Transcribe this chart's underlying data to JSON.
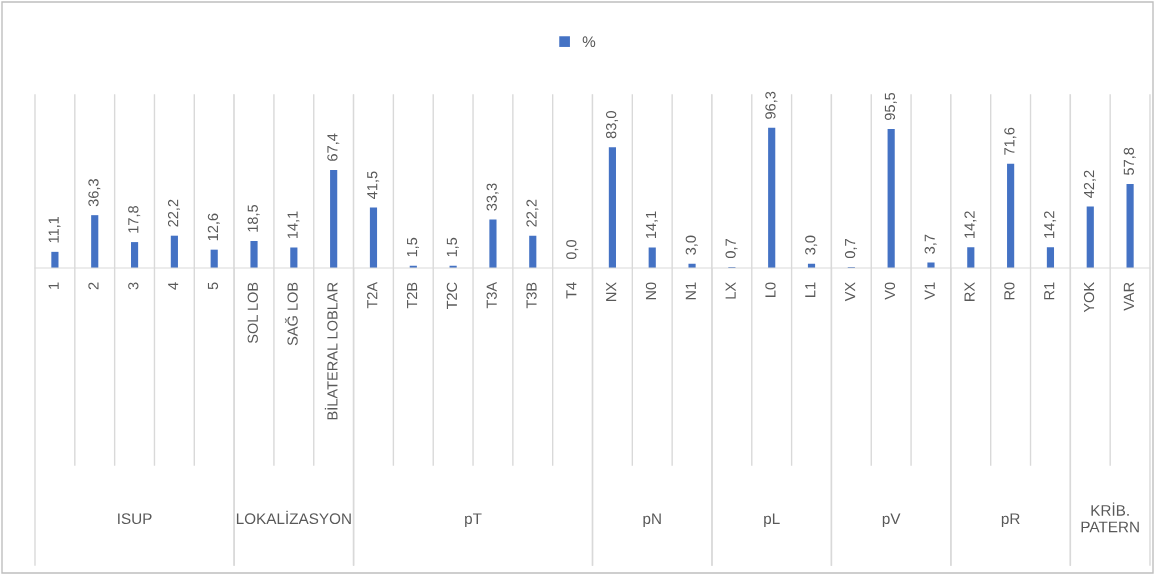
{
  "chart_data": [
    {
      "type": "bar",
      "xlabel": "ISUP",
      "categories": [
        "1",
        "2",
        "3",
        "4",
        "5"
      ],
      "legend": "top",
      "series": [
        {
          "name": "%",
          "color": "#4472c4",
          "values": [
            11.1,
            36.3,
            17.8,
            22.2,
            12.6
          ],
          "value_labels": [
            "11,1",
            "36,3",
            "17,8",
            "22,2",
            "12,6"
          ]
        }
      ]
    },
    {
      "type": "bar",
      "xlabel": "LOKALİZASYON",
      "categories": [
        "SOL LOB",
        "SAĞ LOB",
        "BİLATERAL LOBLAR"
      ],
      "series": [
        {
          "color": "#4472c4",
          "values": [
            18.5,
            14.1,
            67.4
          ],
          "value_labels": [
            "18,5",
            "14,1",
            "67,4"
          ]
        }
      ]
    },
    {
      "type": "bar",
      "xlabel": "pT",
      "categories": [
        "T2A",
        "T2B",
        "T2C",
        "T3A",
        "T3B",
        "T4"
      ],
      "series": [
        {
          "color": "#4472c4",
          "values": [
            41.5,
            1.5,
            1.5,
            33.3,
            22.2,
            0.0
          ],
          "value_labels": [
            "41,5",
            "1,5",
            "1,5",
            "33,3",
            "22,2",
            "0,0"
          ]
        }
      ]
    },
    {
      "type": "bar",
      "xlabel": "pN",
      "categories": [
        "NX",
        "N0",
        "N1"
      ],
      "series": [
        {
          "color": "#4472c4",
          "values": [
            83.0,
            14.1,
            3.0
          ],
          "value_labels": [
            "83,0",
            "14,1",
            "3,0"
          ]
        }
      ]
    },
    {
      "type": "bar",
      "xlabel": "pL",
      "categories": [
        "LX",
        "L0",
        "L1"
      ],
      "series": [
        {
          "color": "#4472c4",
          "values": [
            0.7,
            96.3,
            3.0
          ],
          "value_labels": [
            "0,7",
            "96,3",
            "3,0"
          ]
        }
      ]
    },
    {
      "type": "bar",
      "xlabel": "pV",
      "categories": [
        "VX",
        "V0",
        "V1"
      ],
      "series": [
        {
          "color": "#4472c4",
          "values": [
            0.7,
            95.5,
            3.7
          ],
          "value_labels": [
            "0,7",
            "95,5",
            "3,7"
          ]
        }
      ]
    },
    {
      "type": "bar",
      "xlabel": "pR",
      "categories": [
        "RX",
        "R0",
        "R1"
      ],
      "series": [
        {
          "color": "#4472c4",
          "values": [
            14.2,
            71.6,
            14.2
          ],
          "value_labels": [
            "14,2",
            "71,6",
            "14,2"
          ]
        }
      ]
    },
    {
      "type": "bar",
      "xlabel": "KRİB. PATERN",
      "categories": [
        "YOK",
        "VAR"
      ],
      "series": [
        {
          "color": "#4472c4",
          "values": [
            42.2,
            57.8
          ],
          "value_labels": [
            "42,2",
            "57,8"
          ]
        }
      ]
    }
  ]
}
